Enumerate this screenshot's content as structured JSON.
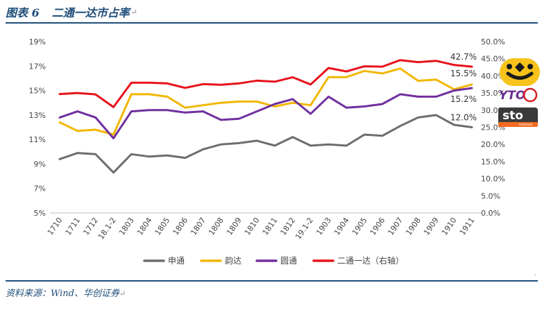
{
  "header": {
    "figure_label": "图表 6",
    "title": "二通一达市占率",
    "para_mark": "↵"
  },
  "footer": {
    "source": "资料来源：Wind、华创证券",
    "para_mark": "↵"
  },
  "chart_data": {
    "type": "line",
    "categories": [
      "1710",
      "1711",
      "1712",
      "18.1-2",
      "1803",
      "1804",
      "1805",
      "1806",
      "1807",
      "1808",
      "1809",
      "1810",
      "1811",
      "1812",
      "19.1-2",
      "1903",
      "1904",
      "1905",
      "1906",
      "1907",
      "1908",
      "1909",
      "1910",
      "1911"
    ],
    "y_left": {
      "ylim": [
        5,
        19
      ],
      "ticks": [
        19,
        17,
        15,
        13,
        11,
        9,
        7,
        5
      ],
      "tick_labels": [
        "19%",
        "17%",
        "15%",
        "13%",
        "11%",
        "9%",
        "7%",
        "5%"
      ]
    },
    "y_right": {
      "ylim": [
        0,
        50
      ],
      "ticks": [
        50,
        45,
        40,
        35,
        30,
        25,
        20,
        15,
        10,
        5,
        0
      ],
      "tick_labels": [
        "50.0%",
        "45.0%",
        "40.0%",
        "35.0%",
        "30.0%",
        "25.0%",
        "20.0%",
        "15.0%",
        "10.0%",
        "5.0%",
        "0.0%"
      ]
    },
    "grid": false,
    "legend_position": "bottom",
    "series": [
      {
        "name": "申通",
        "axis": "left",
        "color": "#6d6d6d",
        "values": [
          9.4,
          9.9,
          9.8,
          8.3,
          9.8,
          9.6,
          9.7,
          9.5,
          10.2,
          10.6,
          10.7,
          10.9,
          10.5,
          11.2,
          10.5,
          10.6,
          10.5,
          11.4,
          11.3,
          12.1,
          12.8,
          13.0,
          12.2,
          12.0
        ],
        "end_label": "12.0%"
      },
      {
        "name": "韵达",
        "axis": "left",
        "color": "#f2b700",
        "values": [
          12.4,
          11.7,
          11.8,
          11.4,
          14.7,
          14.7,
          14.5,
          13.6,
          13.8,
          14.0,
          14.1,
          14.1,
          13.7,
          14.0,
          13.8,
          16.1,
          16.1,
          16.6,
          16.4,
          16.8,
          15.8,
          15.9,
          15.1,
          15.5
        ],
        "end_label": "15.5%"
      },
      {
        "name": "圆通",
        "axis": "left",
        "color": "#7030a0",
        "values": [
          12.8,
          13.3,
          12.8,
          11.1,
          13.3,
          13.4,
          13.4,
          13.2,
          13.3,
          12.6,
          12.7,
          13.3,
          13.9,
          14.3,
          13.1,
          14.5,
          13.6,
          13.7,
          13.9,
          14.7,
          14.5,
          14.5,
          15.0,
          15.2
        ],
        "end_label": "15.2%"
      },
      {
        "name": "二通一达（右轴）",
        "axis": "right",
        "color": "#e8121b",
        "values": [
          34.7,
          35.0,
          34.6,
          30.9,
          38.0,
          38.0,
          37.8,
          36.5,
          37.6,
          37.4,
          37.8,
          38.6,
          38.3,
          39.6,
          37.5,
          42.3,
          41.3,
          42.8,
          42.7,
          44.6,
          44.0,
          44.4,
          43.2,
          42.7
        ],
        "end_label": "42.7%"
      }
    ]
  },
  "logos": {
    "yunda_icon": "yunda-logo",
    "yto_text": "YTO",
    "sto_text": "sto",
    "sto_sub": "express"
  }
}
